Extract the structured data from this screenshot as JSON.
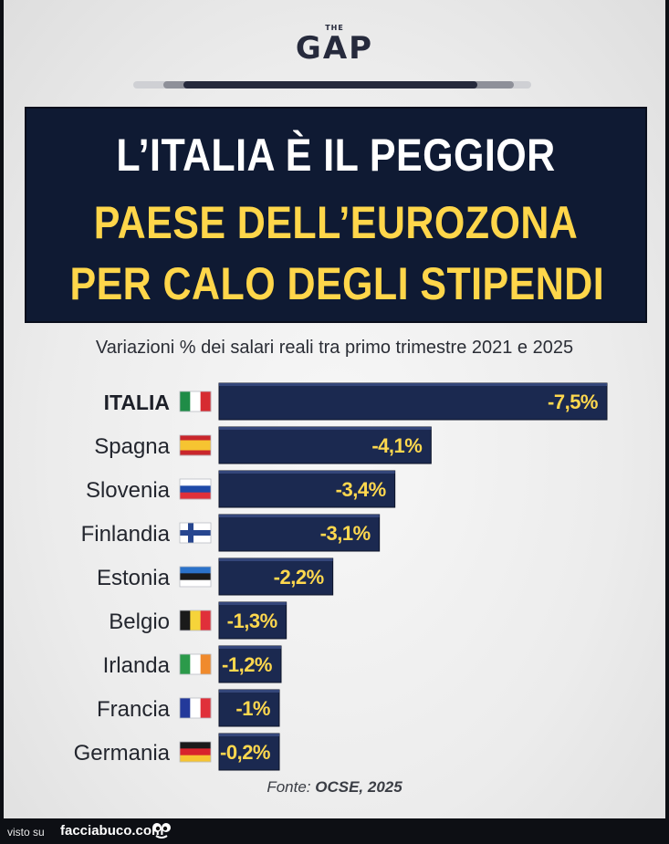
{
  "brand": {
    "small": "THE",
    "name": "GAP"
  },
  "headline": {
    "line1": "L’ITALIA È IL PEGGIOR",
    "line2": "PAESE DELL’EUROZONA",
    "line3": "PER CALO DEGLI STIPENDI"
  },
  "subtitle": "Variazioni % dei salari reali tra primo trimestre 2021 e 2025",
  "source": {
    "prefix": "Fonte: ",
    "name": "OCSE, 2025"
  },
  "watermark": {
    "prefix": "visto su",
    "site": "facciabuco.com"
  },
  "colors": {
    "bar": "#1b2950",
    "bar_label": "#ffd84e",
    "headline_bg": "#0f1a33",
    "headline_yellow": "#ffd64a"
  },
  "chart_data": {
    "type": "bar",
    "orientation": "horizontal",
    "title": "Variazioni % dei salari reali tra primo trimestre 2021 e 2025",
    "xlabel": "",
    "ylabel": "",
    "categories": [
      "ITALIA",
      "Spagna",
      "Slovenia",
      "Finlandia",
      "Estonia",
      "Belgio",
      "Irlanda",
      "Francia",
      "Germania"
    ],
    "values": [
      -7.5,
      -4.1,
      -3.4,
      -3.1,
      -2.2,
      -1.3,
      -1.2,
      -1,
      -0.2
    ],
    "labels": [
      "-7,5%",
      "-4,1%",
      "-3,4%",
      "-3,1%",
      "-2,2%",
      "-1,3%",
      "-1,2%",
      "-1%",
      "-0,2%"
    ],
    "flags": [
      "flag-italy-icon",
      "flag-spain-icon",
      "flag-slovenia-icon",
      "flag-finland-icon",
      "flag-estonia-icon",
      "flag-belgium-icon",
      "flag-ireland-icon",
      "flag-france-icon",
      "flag-germany-icon"
    ],
    "highlight": "ITALIA",
    "xlim": [
      0,
      -7.5
    ]
  }
}
